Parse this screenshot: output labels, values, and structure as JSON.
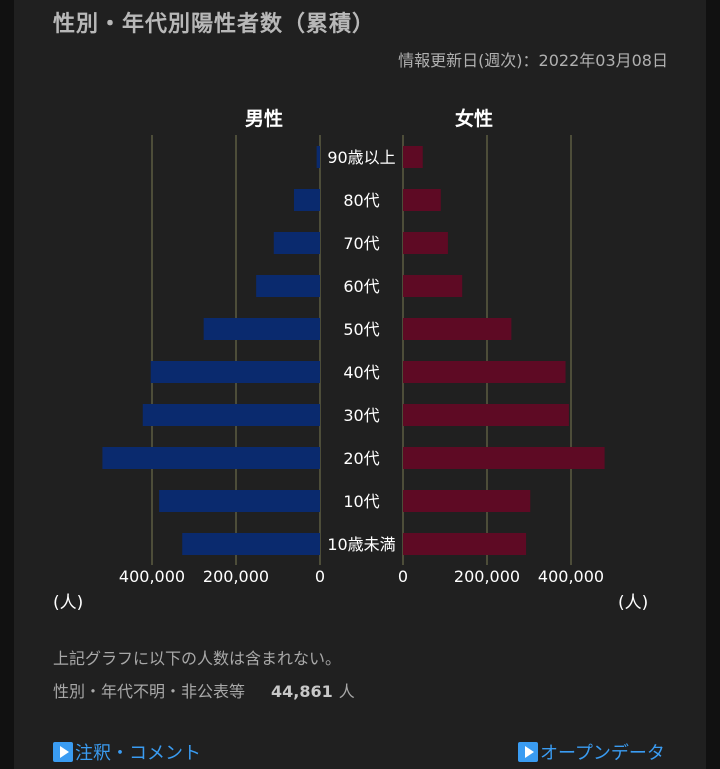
{
  "title": "性別・年代別陽性者数（累積）",
  "updated": "情報更新日(週次)：2022年03月08日",
  "chart_data": {
    "type": "bar",
    "orientation": "population-pyramid",
    "categories": [
      "90歳以上",
      "80代",
      "70代",
      "60代",
      "50代",
      "40代",
      "30代",
      "20代",
      "10代",
      "10歳未満"
    ],
    "series": [
      {
        "name": "男性",
        "side": "left",
        "color": "#0a2a6e",
        "values": [
          8000,
          62000,
          110000,
          152000,
          277000,
          403000,
          422000,
          518000,
          383000,
          328000
        ]
      },
      {
        "name": "女性",
        "side": "right",
        "color": "#5e0a24",
        "values": [
          47000,
          90000,
          107000,
          141000,
          258000,
          387000,
          395000,
          480000,
          303000,
          293000
        ]
      }
    ],
    "tick_labels": [
      "400,000",
      "200,000",
      "0"
    ],
    "tick_labels_right": [
      "0",
      "200,000",
      "400,000"
    ],
    "xlim": [
      0,
      500000
    ],
    "grid": true,
    "unit_label": "(人)"
  },
  "labels": {
    "male": "男性",
    "female": "女性"
  },
  "note": "上記グラフに以下の人数は含まれない。",
  "unknown": {
    "label": "性別・年代不明・非公表等",
    "count": "44,861",
    "unit": "人"
  },
  "links": {
    "notes": "注釈・コメント",
    "opendata": "オープンデータ"
  }
}
